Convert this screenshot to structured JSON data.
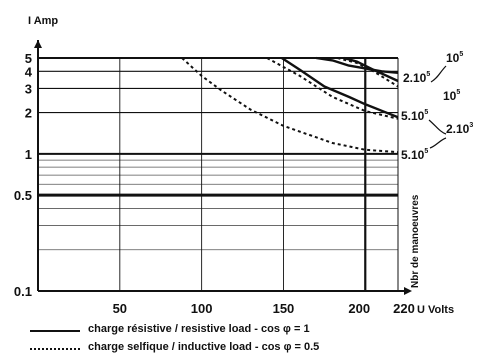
{
  "chart_data": {
    "type": "line",
    "ylabel": "I Amp",
    "xlabel": "U Volts",
    "side_label": "Nbr de manoeuvres",
    "x_scale": "linear",
    "y_scale": "log",
    "xlim": [
      0,
      220
    ],
    "ylim": [
      0.1,
      5
    ],
    "x_ticks": [
      50,
      100,
      150,
      200,
      220
    ],
    "x_tick_labels": [
      "50",
      "100",
      "150",
      "200",
      "220"
    ],
    "y_ticks": [
      0.1,
      0.5,
      1,
      2,
      3,
      4,
      5
    ],
    "y_tick_labels": [
      "0.1",
      "0.5",
      "1",
      "2",
      "3",
      "4",
      "5"
    ],
    "grid": true,
    "series": [
      {
        "style": "resistive",
        "endLabel": "10⁵",
        "points": [
          [
            170,
            5
          ],
          [
            180,
            4.8
          ],
          [
            190,
            4.4
          ],
          [
            200,
            4.2
          ],
          [
            210,
            4.0
          ],
          [
            220,
            3.9
          ]
        ]
      },
      {
        "style": "resistive",
        "endLabel": "2.10⁵",
        "points": [
          [
            187,
            5
          ],
          [
            195,
            4.7
          ],
          [
            205,
            4.1
          ],
          [
            220,
            3.4
          ]
        ]
      },
      {
        "style": "resistive",
        "endLabel": "5.10⁵",
        "points": [
          [
            149,
            5
          ],
          [
            160,
            4.1
          ],
          [
            175,
            3.1
          ],
          [
            190,
            2.6
          ],
          [
            200,
            2.3
          ],
          [
            220,
            1.85
          ]
        ]
      },
      {
        "style": "inductive",
        "endLabel": "10⁵",
        "points": [
          [
            183,
            5
          ],
          [
            195,
            4.6
          ],
          [
            205,
            4.0
          ],
          [
            220,
            3.1
          ]
        ]
      },
      {
        "style": "inductive",
        "endLabel": "2.10³",
        "points": [
          [
            88,
            5
          ],
          [
            100,
            3.7
          ],
          [
            112,
            2.9
          ],
          [
            130,
            2.1
          ],
          [
            150,
            1.6
          ],
          [
            180,
            1.2
          ],
          [
            200,
            1.07
          ],
          [
            220,
            1.03
          ]
        ]
      },
      {
        "style": "inductive",
        "endLabel": "5.10⁵",
        "points": [
          [
            140,
            5
          ],
          [
            160,
            3.7
          ],
          [
            180,
            2.6
          ],
          [
            200,
            2.05
          ],
          [
            220,
            1.8
          ]
        ]
      }
    ],
    "annotations": [
      {
        "text": "10",
        "sup": "5"
      },
      {
        "text": "2.10",
        "sup": "5"
      },
      {
        "text": "10",
        "sup": "5"
      },
      {
        "text": "5.10",
        "sup": "5"
      },
      {
        "text": "2.10",
        "sup": "3"
      },
      {
        "text": "5.10",
        "sup": "5"
      }
    ],
    "legend": [
      {
        "style": "solid",
        "label": "charge résistive / resistive load - cos φ = 1"
      },
      {
        "style": "dotted",
        "label": "charge selfique / inductive load - cos φ = 0.5"
      }
    ]
  }
}
